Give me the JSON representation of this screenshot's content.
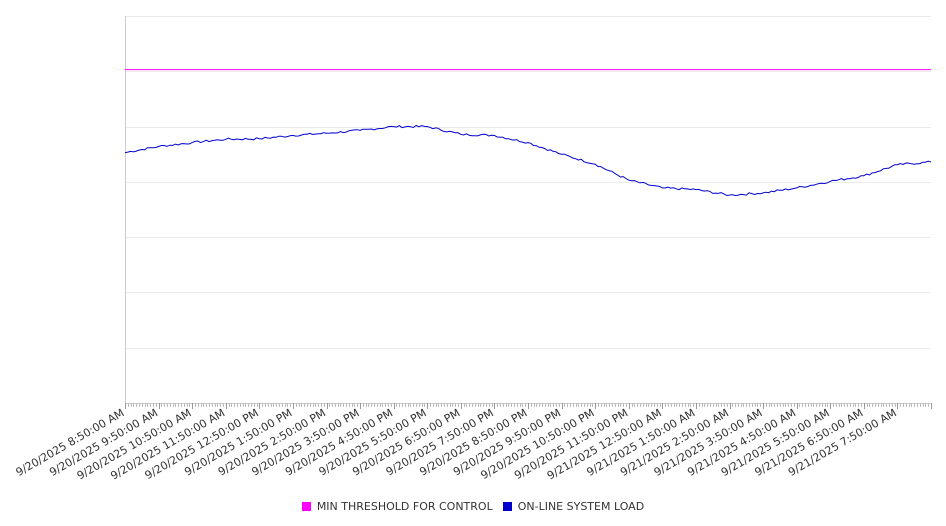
{
  "chart_data": {
    "type": "line",
    "title": "",
    "xlabel": "",
    "ylabel": "",
    "grid": true,
    "legend_position": "bottom-center",
    "x_tick_labels": [
      "9/20/2025 8:50:00 AM",
      "9/20/2025 9:50:00 AM",
      "9/20/2025 10:50:00 AM",
      "9/20/2025 11:50:00 AM",
      "9/20/2025 12:50:00 PM",
      "9/20/2025 1:50:00 PM",
      "9/20/2025 2:50:00 PM",
      "9/20/2025 3:50:00 PM",
      "9/20/2025 4:50:00 PM",
      "9/20/2025 5:50:00 PM",
      "9/20/2025 6:50:00 PM",
      "9/20/2025 7:50:00 PM",
      "9/20/2025 8:50:00 PM",
      "9/20/2025 9:50:00 PM",
      "9/20/2025 10:50:00 PM",
      "9/20/2025 11:50:00 PM",
      "9/21/2025 12:50:00 AM",
      "9/21/2025 1:50:00 AM",
      "9/21/2025 2:50:00 AM",
      "9/21/2025 3:50:00 AM",
      "9/21/2025 4:50:00 AM",
      "9/21/2025 5:50:00 AM",
      "9/21/2025 6:50:00 AM",
      "9/21/2025 7:50:00 AM"
    ],
    "x_end": "9/21/2025 8:50:00 AM",
    "ylim": [
      0,
      7
    ],
    "y_gridlines": [
      1,
      2,
      3,
      4,
      5,
      6,
      7
    ],
    "series": [
      {
        "name": "MIN THRESHOLD FOR CONTROL",
        "color": "#ff00ff",
        "x": [
          "9/20/2025 8:50:00 AM",
          "9/21/2025 8:50:00 AM"
        ],
        "values": [
          6.03,
          6.03
        ]
      },
      {
        "name": "ON-LINE SYSTEM LOAD",
        "color": "#0000cc",
        "x": [
          "9/20/2025 8:50:00 AM",
          "9/20/2025 9:50:00 AM",
          "9/20/2025 10:50:00 AM",
          "9/20/2025 11:50:00 AM",
          "9/20/2025 12:50:00 PM",
          "9/20/2025 1:50:00 PM",
          "9/20/2025 2:50:00 PM",
          "9/20/2025 3:50:00 PM",
          "9/20/2025 4:50:00 PM",
          "9/20/2025 5:50:00 PM",
          "9/20/2025 6:50:00 PM",
          "9/20/2025 7:50:00 PM",
          "9/20/2025 8:50:00 PM",
          "9/20/2025 9:50:00 PM",
          "9/20/2025 10:50:00 PM",
          "9/20/2025 11:50:00 PM",
          "9/21/2025 12:50:00 AM",
          "9/21/2025 1:50:00 AM",
          "9/21/2025 2:50:00 AM",
          "9/21/2025 3:50:00 AM",
          "9/21/2025 4:50:00 AM",
          "9/21/2025 5:50:00 AM",
          "9/21/2025 6:50:00 AM",
          "9/21/2025 7:50:00 AM",
          "9/21/2025 8:50:00 AM"
        ],
        "values": [
          4.53,
          4.64,
          4.71,
          4.77,
          4.78,
          4.84,
          4.88,
          4.93,
          5.0,
          5.0,
          4.86,
          4.84,
          4.71,
          4.5,
          4.32,
          4.03,
          3.89,
          3.86,
          3.76,
          3.8,
          3.89,
          4.01,
          4.11,
          4.31,
          4.36
        ]
      }
    ]
  }
}
